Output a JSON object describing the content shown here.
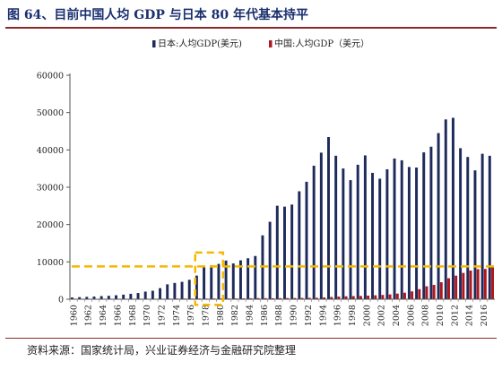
{
  "figure": {
    "title": "图 64、目前中国人均 GDP 与日本 80 年代基本持平",
    "source": "资料来源：国家统计局，兴业证券经济与金融研究院整理"
  },
  "chart_data": {
    "type": "bar",
    "title": "",
    "xlabel": "",
    "ylabel": "",
    "ylim": [
      0,
      60000
    ],
    "yticks": [
      0,
      10000,
      20000,
      30000,
      40000,
      50000,
      60000
    ],
    "x_tick_labels": [
      "1960",
      "1962",
      "1964",
      "1966",
      "1968",
      "1970",
      "1972",
      "1974",
      "1976",
      "1978",
      "1980",
      "1982",
      "1984",
      "1986",
      "1988",
      "1990",
      "1992",
      "1994",
      "1996",
      "1998",
      "2000",
      "2002",
      "2004",
      "2006",
      "2008",
      "2010",
      "2012",
      "2014",
      "2016"
    ],
    "grid": false,
    "legend_position": "top-center",
    "categories": [
      1960,
      1961,
      1962,
      1963,
      1964,
      1965,
      1966,
      1967,
      1968,
      1969,
      1970,
      1971,
      1972,
      1973,
      1974,
      1975,
      1976,
      1977,
      1978,
      1979,
      1980,
      1981,
      1982,
      1983,
      1984,
      1985,
      1986,
      1987,
      1988,
      1989,
      1990,
      1991,
      1992,
      1993,
      1994,
      1995,
      1996,
      1997,
      1998,
      1999,
      2000,
      2001,
      2002,
      2003,
      2004,
      2005,
      2006,
      2007,
      2008,
      2009,
      2010,
      2011,
      2012,
      2013,
      2014,
      2015,
      2016,
      2017
    ],
    "series": [
      {
        "name": "日本:人均GDP(美元)",
        "color": "#1f2a5c",
        "values": [
          480,
          560,
          630,
          720,
          840,
          920,
          1060,
          1230,
          1450,
          1670,
          2040,
          2270,
          2970,
          3990,
          4360,
          4660,
          5200,
          6330,
          8820,
          9100,
          9460,
          10360,
          9580,
          10420,
          10980,
          11580,
          17110,
          20750,
          25050,
          24810,
          25360,
          28920,
          31470,
          35770,
          39270,
          43440,
          38440,
          35020,
          31900,
          36030,
          38530,
          33850,
          32290,
          34810,
          37690,
          37220,
          35430,
          35280,
          39340,
          40860,
          44510,
          48170,
          48600,
          40460,
          38110,
          34520,
          38970,
          38430
        ]
      },
      {
        "name": "中国:人均GDP（美元）",
        "color": "#b0171c",
        "values": [
          90,
          75,
          70,
          74,
          85,
          98,
          104,
          96,
          91,
          100,
          113,
          118,
          131,
          157,
          160,
          178,
          165,
          185,
          156,
          184,
          195,
          197,
          203,
          225,
          251,
          294,
          281,
          252,
          284,
          311,
          318,
          333,
          366,
          377,
          473,
          610,
          709,
          781,
          829,
          873,
          959,
          1053,
          1149,
          1289,
          1509,
          1753,
          2099,
          2694,
          3468,
          3832,
          4550,
          5618,
          6317,
          7051,
          7679,
          8069,
          8117,
          8759
        ]
      }
    ],
    "annotations": {
      "reference_line_value": 8800,
      "reference_line_color": "#f5b800",
      "highlight_box": {
        "from_year": 1977,
        "to_year": 1980,
        "ymin": -1500,
        "ymax": 12500,
        "color": "#f5b800"
      }
    }
  }
}
